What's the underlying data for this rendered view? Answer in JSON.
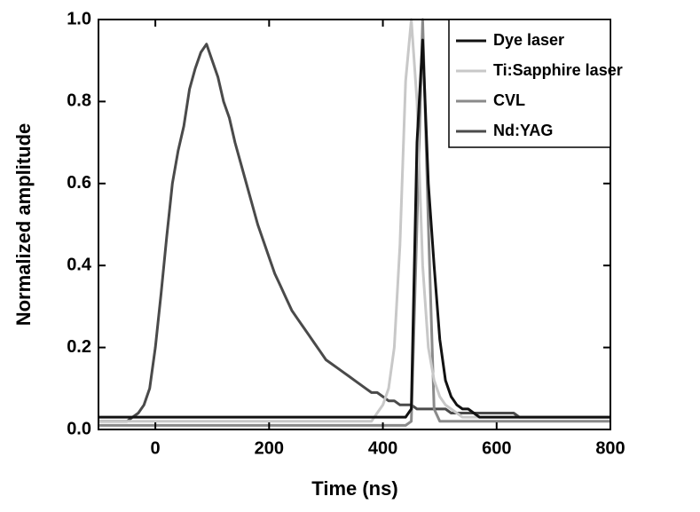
{
  "chart_data": {
    "type": "line",
    "xlabel": "Time (ns)",
    "ylabel": "Normalized amplitude",
    "xlim": [
      -100,
      800
    ],
    "xticks": [
      0,
      200,
      400,
      600,
      800
    ],
    "ylim": [
      0,
      1
    ],
    "yticks": [
      {
        "value": 0,
        "label": "0.0"
      },
      0.2,
      0.4,
      0.6,
      0.8,
      {
        "value": 1,
        "label": "1.0"
      }
    ],
    "legend": "upper right",
    "x": [
      -100,
      -90,
      -80,
      -70,
      -60,
      -50,
      -40,
      -30,
      -20,
      -10,
      0,
      10,
      20,
      30,
      40,
      50,
      60,
      70,
      80,
      90,
      100,
      110,
      120,
      130,
      140,
      150,
      160,
      170,
      180,
      190,
      200,
      210,
      220,
      230,
      240,
      250,
      260,
      270,
      280,
      290,
      300,
      310,
      320,
      330,
      340,
      350,
      360,
      370,
      380,
      390,
      400,
      410,
      420,
      430,
      440,
      450,
      460,
      470,
      480,
      490,
      500,
      510,
      520,
      530,
      540,
      550,
      560,
      570,
      580,
      590,
      600,
      610,
      620,
      630,
      640,
      650,
      660,
      670,
      680,
      690,
      700,
      710,
      720,
      730,
      740,
      750,
      760,
      770,
      780,
      790,
      800
    ],
    "series": [
      {
        "name": "Dye laser",
        "color": "#111111",
        "values": [
          0.03,
          0.03,
          0.03,
          0.03,
          0.03,
          0.03,
          0.03,
          0.03,
          0.03,
          0.03,
          0.03,
          0.03,
          0.03,
          0.03,
          0.03,
          0.03,
          0.03,
          0.03,
          0.03,
          0.03,
          0.03,
          0.03,
          0.03,
          0.03,
          0.03,
          0.03,
          0.03,
          0.03,
          0.03,
          0.03,
          0.03,
          0.03,
          0.03,
          0.03,
          0.03,
          0.03,
          0.03,
          0.03,
          0.03,
          0.03,
          0.03,
          0.03,
          0.03,
          0.03,
          0.03,
          0.03,
          0.03,
          0.03,
          0.03,
          0.03,
          0.03,
          0.03,
          0.03,
          0.03,
          0.03,
          0.05,
          0.7,
          0.95,
          0.6,
          0.4,
          0.22,
          0.12,
          0.08,
          0.06,
          0.05,
          0.05,
          0.04,
          0.03,
          0.03,
          0.03,
          0.03,
          0.03,
          0.03,
          0.03,
          0.03,
          0.03,
          0.03,
          0.03,
          0.03,
          0.03,
          0.03,
          0.03,
          0.03,
          0.03,
          0.03,
          0.03,
          0.03,
          0.03,
          0.03,
          0.03,
          0.03
        ]
      },
      {
        "name": "Ti:Sapphire laser",
        "color": "#c8c8c8",
        "values": [
          0.02,
          0.02,
          0.02,
          0.02,
          0.02,
          0.02,
          0.02,
          0.02,
          0.02,
          0.02,
          0.02,
          0.02,
          0.02,
          0.02,
          0.02,
          0.02,
          0.02,
          0.02,
          0.02,
          0.02,
          0.02,
          0.02,
          0.02,
          0.02,
          0.02,
          0.02,
          0.02,
          0.02,
          0.02,
          0.02,
          0.02,
          0.02,
          0.02,
          0.02,
          0.02,
          0.02,
          0.02,
          0.02,
          0.02,
          0.02,
          0.02,
          0.02,
          0.02,
          0.02,
          0.02,
          0.02,
          0.02,
          0.02,
          0.02,
          0.04,
          0.06,
          0.1,
          0.2,
          0.45,
          0.85,
          1.0,
          0.8,
          0.4,
          0.2,
          0.12,
          0.08,
          0.06,
          0.05,
          0.04,
          0.03,
          0.03,
          0.03,
          0.03,
          0.03,
          0.03,
          0.03,
          0.03,
          0.03,
          0.03,
          0.03,
          0.03,
          0.03,
          0.03,
          0.03,
          0.03,
          0.03,
          0.03,
          0.03,
          0.03,
          0.03,
          0.03,
          0.03,
          0.03,
          0.03,
          0.03,
          0.03
        ]
      },
      {
        "name": "CVL",
        "color": "#8a8a8a",
        "values": [
          0.01,
          0.01,
          0.01,
          0.01,
          0.01,
          0.01,
          0.01,
          0.01,
          0.01,
          0.01,
          0.01,
          0.01,
          0.01,
          0.01,
          0.01,
          0.01,
          0.01,
          0.01,
          0.01,
          0.01,
          0.01,
          0.01,
          0.01,
          0.01,
          0.01,
          0.01,
          0.01,
          0.01,
          0.01,
          0.01,
          0.01,
          0.01,
          0.01,
          0.01,
          0.01,
          0.01,
          0.01,
          0.01,
          0.01,
          0.01,
          0.01,
          0.01,
          0.01,
          0.01,
          0.01,
          0.01,
          0.01,
          0.01,
          0.01,
          0.01,
          0.01,
          0.01,
          0.01,
          0.01,
          0.01,
          0.02,
          0.5,
          1.0,
          0.5,
          0.05,
          0.02,
          0.02,
          0.02,
          0.02,
          0.02,
          0.02,
          0.02,
          0.02,
          0.02,
          0.02,
          0.02,
          0.02,
          0.02,
          0.02,
          0.02,
          0.02,
          0.02,
          0.02,
          0.02,
          0.02,
          0.02,
          0.02,
          0.02,
          0.02,
          0.02,
          0.02,
          0.02,
          0.02,
          0.02,
          0.02,
          0.02
        ]
      },
      {
        "name": "Nd:YAG",
        "color": "#4a4a4a",
        "values": [
          0.02,
          0.02,
          0.02,
          0.02,
          0.02,
          0.02,
          0.03,
          0.04,
          0.06,
          0.1,
          0.2,
          0.33,
          0.47,
          0.6,
          0.68,
          0.74,
          0.83,
          0.88,
          0.92,
          0.94,
          0.9,
          0.86,
          0.8,
          0.76,
          0.7,
          0.65,
          0.6,
          0.55,
          0.5,
          0.46,
          0.42,
          0.38,
          0.35,
          0.32,
          0.29,
          0.27,
          0.25,
          0.23,
          0.21,
          0.19,
          0.17,
          0.16,
          0.15,
          0.14,
          0.13,
          0.12,
          0.11,
          0.1,
          0.09,
          0.09,
          0.08,
          0.07,
          0.07,
          0.06,
          0.06,
          0.06,
          0.05,
          0.05,
          0.05,
          0.05,
          0.05,
          0.05,
          0.04,
          0.04,
          0.04,
          0.04,
          0.04,
          0.04,
          0.04,
          0.04,
          0.04,
          0.04,
          0.04,
          0.04,
          0.03,
          0.03,
          0.03,
          0.03,
          0.03,
          0.03,
          0.03,
          0.03,
          0.03,
          0.03,
          0.03,
          0.03,
          0.03,
          0.03,
          0.03,
          0.03,
          0.03
        ]
      }
    ]
  }
}
